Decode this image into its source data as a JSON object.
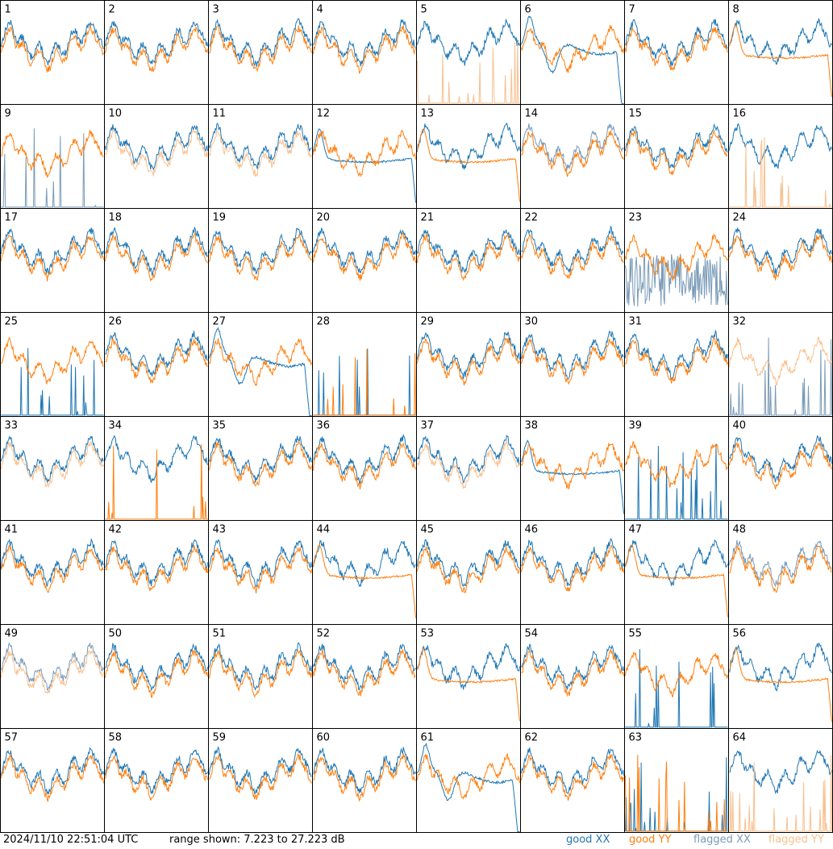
{
  "footer": {
    "timestamp": "2024/11/10 22:51:04 UTC",
    "range": "range shown: 7.223 to 27.223 dB"
  },
  "colors": {
    "good_xx": "#1f77b4",
    "good_yy": "#ff7f0e",
    "flagged_xx": "#7a9bb8",
    "flagged_yy": "#f9c08e"
  },
  "chart_data": {
    "type": "line",
    "title": "",
    "ylim": [
      7.223,
      27.223
    ],
    "units": "dB",
    "grid": false,
    "layout": "8x8 small multiples",
    "legend": [
      {
        "label": "good XX",
        "color": "#1f77b4"
      },
      {
        "label": "good YY",
        "color": "#ff7f0e"
      },
      {
        "label": "flagged XX",
        "color": "#7a9bb8"
      },
      {
        "label": "flagged YY",
        "color": "#f9c08e"
      }
    ],
    "panels": [
      {
        "label": "1",
        "xx": "good",
        "yy": "good",
        "profile": "spiky"
      },
      {
        "label": "2",
        "xx": "good",
        "yy": "good",
        "profile": "normal"
      },
      {
        "label": "3",
        "xx": "good",
        "yy": "good",
        "profile": "normal"
      },
      {
        "label": "4",
        "xx": "good",
        "yy": "good",
        "profile": "normal"
      },
      {
        "label": "5",
        "xx": "good",
        "yy": "flagged",
        "profile": "yy-dead"
      },
      {
        "label": "6",
        "xx": "good",
        "yy": "good",
        "profile": "xx-dip"
      },
      {
        "label": "7",
        "xx": "good",
        "yy": "good",
        "profile": "normal"
      },
      {
        "label": "8",
        "xx": "good",
        "yy": "good",
        "profile": "yy-smooth"
      },
      {
        "label": "9",
        "xx": "flagged",
        "yy": "good",
        "profile": "xx-dead"
      },
      {
        "label": "10",
        "xx": "good",
        "yy": "flagged",
        "profile": "normal"
      },
      {
        "label": "11",
        "xx": "good",
        "yy": "flagged",
        "profile": "normal"
      },
      {
        "label": "12",
        "xx": "good",
        "yy": "good",
        "profile": "xx-smooth"
      },
      {
        "label": "13",
        "xx": "good",
        "yy": "good",
        "profile": "yy-smooth"
      },
      {
        "label": "14",
        "xx": "flagged",
        "yy": "good",
        "profile": "normal"
      },
      {
        "label": "15",
        "xx": "good",
        "yy": "good",
        "profile": "normal"
      },
      {
        "label": "16",
        "xx": "good",
        "yy": "flagged",
        "profile": "yy-dead"
      },
      {
        "label": "17",
        "xx": "good",
        "yy": "good",
        "profile": "normal"
      },
      {
        "label": "18",
        "xx": "good",
        "yy": "good",
        "profile": "normal"
      },
      {
        "label": "19",
        "xx": "good",
        "yy": "good",
        "profile": "normal"
      },
      {
        "label": "20",
        "xx": "good",
        "yy": "good",
        "profile": "normal"
      },
      {
        "label": "21",
        "xx": "good",
        "yy": "good",
        "profile": "normal"
      },
      {
        "label": "22",
        "xx": "good",
        "yy": "good",
        "profile": "normal"
      },
      {
        "label": "23",
        "xx": "flagged",
        "yy": "good",
        "profile": "xx-noisy"
      },
      {
        "label": "24",
        "xx": "good",
        "yy": "good",
        "profile": "normal"
      },
      {
        "label": "25",
        "xx": "good",
        "yy": "good",
        "profile": "yy-only"
      },
      {
        "label": "26",
        "xx": "good",
        "yy": "good",
        "profile": "normal"
      },
      {
        "label": "27",
        "xx": "good",
        "yy": "good",
        "profile": "xx-dip"
      },
      {
        "label": "28",
        "xx": "good",
        "yy": "good",
        "profile": "both-dead"
      },
      {
        "label": "29",
        "xx": "good",
        "yy": "good",
        "profile": "normal"
      },
      {
        "label": "30",
        "xx": "good",
        "yy": "good",
        "profile": "normal"
      },
      {
        "label": "31",
        "xx": "good",
        "yy": "good",
        "profile": "normal"
      },
      {
        "label": "32",
        "xx": "flagged",
        "yy": "flagged",
        "profile": "yy-only"
      },
      {
        "label": "33",
        "xx": "good",
        "yy": "flagged",
        "profile": "normal"
      },
      {
        "label": "34",
        "xx": "good",
        "yy": "good",
        "profile": "yy-dead"
      },
      {
        "label": "35",
        "xx": "good",
        "yy": "good",
        "profile": "normal"
      },
      {
        "label": "36",
        "xx": "good",
        "yy": "good",
        "profile": "normal"
      },
      {
        "label": "37",
        "xx": "good",
        "yy": "flagged",
        "profile": "normal"
      },
      {
        "label": "38",
        "xx": "good",
        "yy": "good",
        "profile": "xx-smooth"
      },
      {
        "label": "39",
        "xx": "good",
        "yy": "good",
        "profile": "xx-dead"
      },
      {
        "label": "40",
        "xx": "good",
        "yy": "good",
        "profile": "normal"
      },
      {
        "label": "41",
        "xx": "good",
        "yy": "good",
        "profile": "normal"
      },
      {
        "label": "42",
        "xx": "good",
        "yy": "good",
        "profile": "normal"
      },
      {
        "label": "43",
        "xx": "good",
        "yy": "good",
        "profile": "normal"
      },
      {
        "label": "44",
        "xx": "good",
        "yy": "good",
        "profile": "yy-smooth"
      },
      {
        "label": "45",
        "xx": "good",
        "yy": "good",
        "profile": "normal"
      },
      {
        "label": "46",
        "xx": "good",
        "yy": "good",
        "profile": "normal"
      },
      {
        "label": "47",
        "xx": "good",
        "yy": "good",
        "profile": "yy-smooth"
      },
      {
        "label": "48",
        "xx": "flagged",
        "yy": "good",
        "profile": "normal"
      },
      {
        "label": "49",
        "xx": "flagged",
        "yy": "flagged",
        "profile": "normal"
      },
      {
        "label": "50",
        "xx": "good",
        "yy": "good",
        "profile": "normal"
      },
      {
        "label": "51",
        "xx": "good",
        "yy": "good",
        "profile": "normal"
      },
      {
        "label": "52",
        "xx": "good",
        "yy": "good",
        "profile": "normal"
      },
      {
        "label": "53",
        "xx": "good",
        "yy": "good",
        "profile": "yy-smooth"
      },
      {
        "label": "54",
        "xx": "good",
        "yy": "good",
        "profile": "normal"
      },
      {
        "label": "55",
        "xx": "good",
        "yy": "good",
        "profile": "xx-dead"
      },
      {
        "label": "56",
        "xx": "good",
        "yy": "good",
        "profile": "yy-smooth"
      },
      {
        "label": "57",
        "xx": "good",
        "yy": "good",
        "profile": "normal"
      },
      {
        "label": "58",
        "xx": "good",
        "yy": "good",
        "profile": "normal"
      },
      {
        "label": "59",
        "xx": "good",
        "yy": "good",
        "profile": "normal"
      },
      {
        "label": "60",
        "xx": "good",
        "yy": "good",
        "profile": "normal"
      },
      {
        "label": "61",
        "xx": "good",
        "yy": "good",
        "profile": "xx-dip"
      },
      {
        "label": "62",
        "xx": "good",
        "yy": "good",
        "profile": "normal"
      },
      {
        "label": "63",
        "xx": "good",
        "yy": "good",
        "profile": "both-dead"
      },
      {
        "label": "64",
        "xx": "good",
        "yy": "flagged",
        "profile": "yy-dead"
      }
    ]
  }
}
